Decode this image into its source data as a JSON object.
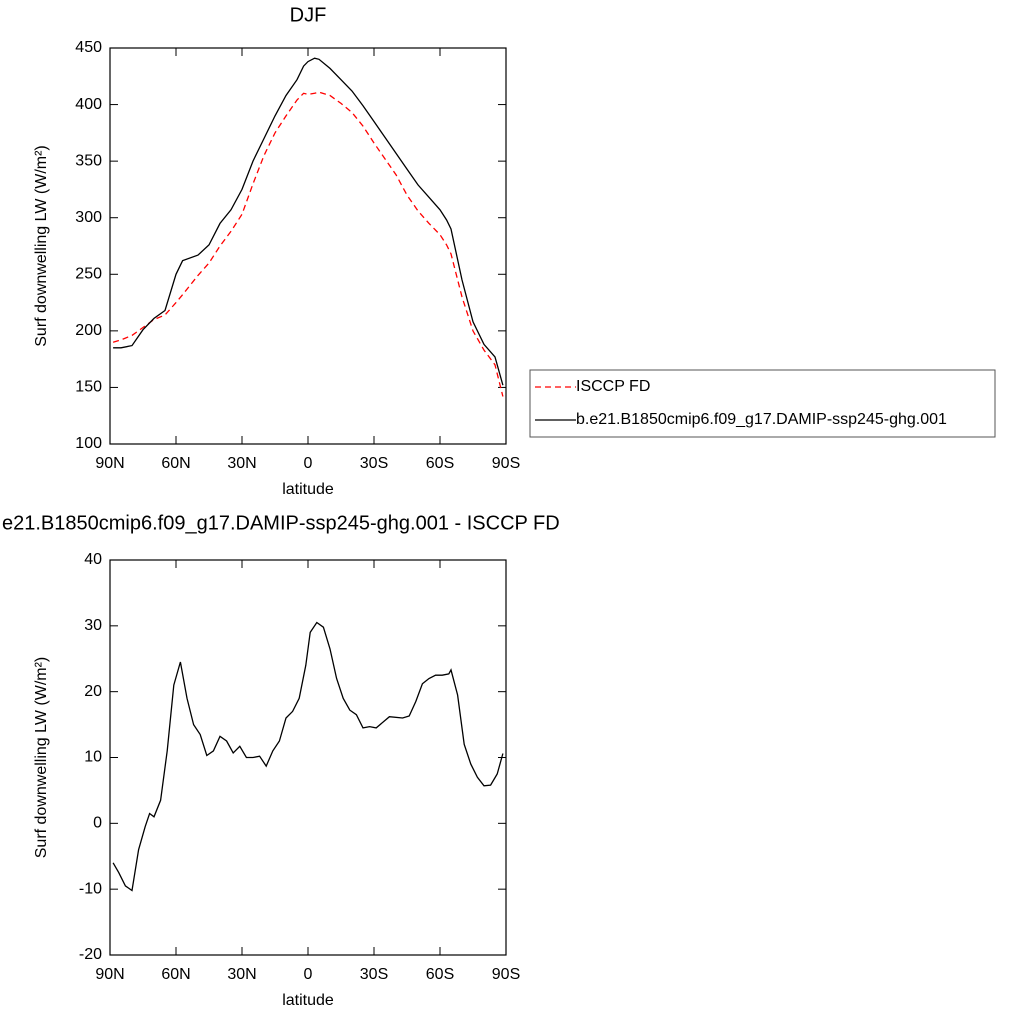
{
  "chart_data": [
    {
      "type": "line",
      "title": "DJF",
      "xlabel": "latitude",
      "ylabel": "Surf downwelling LW (W/m²)",
      "xlim": [
        90,
        -90
      ],
      "xticks": [
        {
          "value": 90,
          "label": "90N"
        },
        {
          "value": 60,
          "label": "60N"
        },
        {
          "value": 30,
          "label": "30N"
        },
        0,
        {
          "value": -30,
          "label": "30S"
        },
        {
          "value": -60,
          "label": "60S"
        },
        {
          "value": -90,
          "label": "90S"
        }
      ],
      "ylim": [
        100,
        450
      ],
      "yticks": [
        100,
        150,
        200,
        250,
        300,
        350,
        400,
        450
      ],
      "legend": "right",
      "x": [
        88.6,
        85,
        80,
        75,
        70,
        65,
        60,
        57,
        50,
        45,
        40,
        35,
        30,
        25,
        20,
        15,
        10,
        5,
        2,
        0,
        -3,
        -5,
        -10,
        -15,
        -20,
        -25,
        -30,
        -35,
        -40,
        -45,
        -50,
        -55,
        -60,
        -63,
        -65,
        -70,
        -75,
        -80,
        -85,
        -88.6
      ],
      "series": [
        {
          "name": "ISCCP FD",
          "color": "#ff0000",
          "dash": "dashed",
          "values": [
            190,
            192,
            196,
            203,
            210,
            214,
            225,
            232,
            249,
            260,
            275,
            288,
            303,
            330,
            355,
            375,
            390,
            404,
            410,
            409,
            410,
            411,
            408,
            401,
            393,
            381,
            366,
            352,
            338,
            320,
            306,
            295,
            285,
            276,
            268,
            230,
            200,
            183,
            170,
            142
          ]
        },
        {
          "name": "b.e21.B1850cmip6.f09_g17.DAMIP-ssp245-ghg.001",
          "color": "#000000",
          "dash": "solid",
          "values": [
            185,
            185,
            187,
            201,
            211,
            218,
            250,
            262,
            267,
            276,
            295,
            307,
            325,
            350,
            370,
            390,
            408,
            422,
            434,
            438,
            441,
            440,
            432,
            422,
            412,
            399,
            385,
            371,
            357,
            343,
            329,
            318,
            307,
            298,
            290,
            245,
            208,
            188,
            177,
            152
          ]
        }
      ]
    },
    {
      "type": "line",
      "title": "e21.B1850cmip6.f09_g17.DAMIP-ssp245-ghg.001 - ISCCP FD",
      "xlabel": "latitude",
      "ylabel": "Surf downwelling LW (W/m²)",
      "xlim": [
        90,
        -90
      ],
      "xticks": [
        {
          "value": 90,
          "label": "90N"
        },
        {
          "value": 60,
          "label": "60N"
        },
        {
          "value": 30,
          "label": "30N"
        },
        0,
        {
          "value": -30,
          "label": "30S"
        },
        {
          "value": -60,
          "label": "60S"
        },
        {
          "value": -90,
          "label": "90S"
        }
      ],
      "ylim": [
        -20,
        40
      ],
      "yticks": [
        -20,
        -10,
        0,
        10,
        20,
        30,
        40
      ],
      "x": [
        88.6,
        86,
        83,
        80,
        77,
        74,
        72,
        70,
        67,
        64,
        61,
        58,
        55,
        52,
        49,
        46,
        43,
        40,
        37,
        34,
        31,
        28,
        25,
        22,
        19,
        16,
        13,
        10,
        7,
        4,
        1,
        -1,
        -4,
        -7,
        -10,
        -13,
        -16,
        -19,
        -22,
        -25,
        -28,
        -31,
        -37,
        -43,
        -46,
        -49,
        -52,
        -55,
        -58,
        -61,
        -64,
        -65,
        -68,
        -71,
        -74,
        -77,
        -80,
        -83,
        -86,
        -88.6
      ],
      "series": [
        {
          "color": "#000000",
          "dash": "solid",
          "values": [
            -6,
            -7.5,
            -9.5,
            -10.2,
            -4,
            -0.5,
            1.5,
            1,
            3.5,
            11,
            21,
            24.5,
            19,
            15,
            13.5,
            10.3,
            11,
            13.2,
            12.5,
            10.7,
            11.7,
            10,
            10,
            10.2,
            8.7,
            11,
            12.5,
            16,
            17,
            19,
            24,
            29,
            30.5,
            29.8,
            26.5,
            22,
            19,
            17.2,
            16.5,
            14.5,
            14.7,
            14.5,
            16.2,
            16,
            16.3,
            18.5,
            21.2,
            22,
            22.5,
            22.5,
            22.7,
            23.3,
            19.5,
            12,
            9,
            7,
            5.7,
            5.8,
            7.5,
            10.6
          ]
        }
      ]
    }
  ]
}
